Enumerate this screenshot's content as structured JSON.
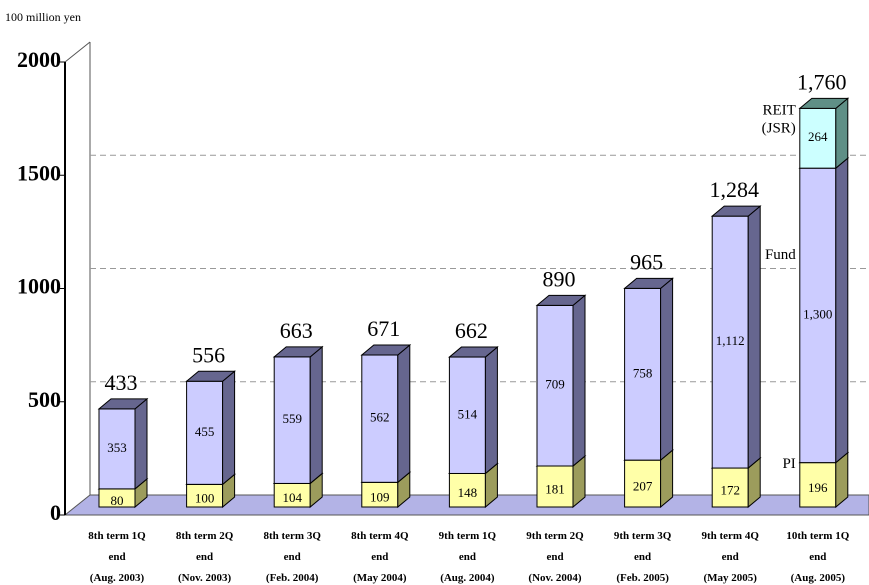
{
  "chart_data": {
    "type": "bar3d_stacked",
    "y_axis_label": "100 million yen",
    "categories": [
      "8th term 1Q\nend\n(Aug. 2003)",
      "8th term 2Q\nend\n(Nov. 2003)",
      "8th term 3Q\nend\n(Feb. 2004)",
      "8th term 4Q\nend\n(May 2004)",
      "9th term 1Q\nend\n(Aug. 2004)",
      "9th term 2Q\nend\n(Nov. 2004)",
      "9th term 3Q\nend\n(Feb. 2005)",
      "9th term 4Q\nend\n(May 2005)",
      "10th term 1Q\nend\n(Aug. 2005)"
    ],
    "series": [
      {
        "name": "PI",
        "color": "#ffffa8",
        "side_color": "#9c9c5c",
        "values": [
          80,
          100,
          104,
          109,
          148,
          181,
          207,
          172,
          196
        ]
      },
      {
        "name": "Fund",
        "color": "#ccccff",
        "side_color": "#66668f",
        "values": [
          353,
          455,
          559,
          562,
          514,
          709,
          758,
          1112,
          1300
        ],
        "value_labels": [
          "353",
          "455",
          "559",
          "562",
          "514",
          "709",
          "758",
          "1,112",
          "1,300"
        ]
      },
      {
        "name": "REIT (JSR)",
        "color": "#ccffff",
        "side_color": "#5f8f86",
        "values": [
          null,
          null,
          null,
          null,
          null,
          null,
          null,
          null,
          264
        ]
      }
    ],
    "totals": [
      433,
      556,
      663,
      671,
      662,
      890,
      965,
      1284,
      1760
    ],
    "totals_labels": [
      "433",
      "556",
      "663",
      "671",
      "662",
      "890",
      "965",
      "1,284",
      "1,760"
    ],
    "ylim": [
      0,
      2000
    ],
    "yticks": [
      0,
      500,
      1000,
      1500,
      2000
    ],
    "grid": true
  }
}
